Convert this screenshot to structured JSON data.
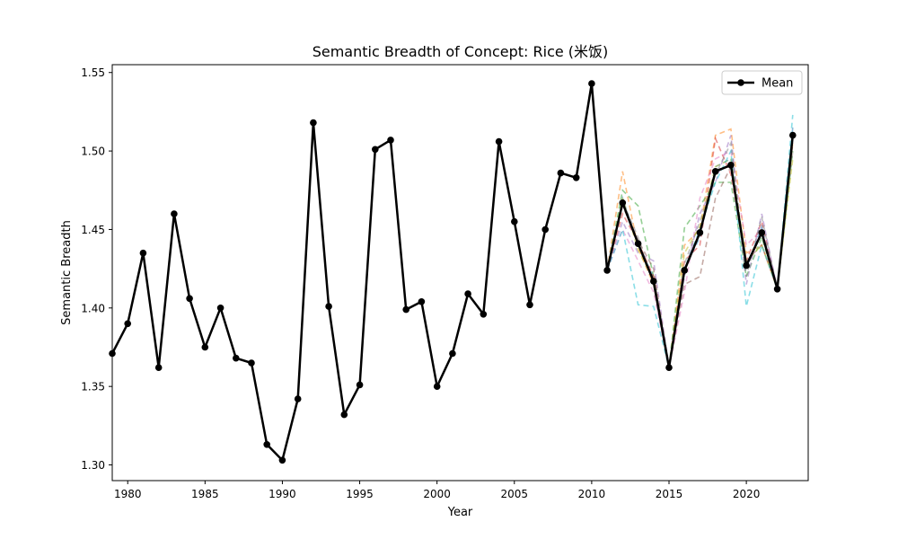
{
  "chart_data": {
    "type": "line",
    "title": "Semantic Breadth of Concept: Rice (米饭)",
    "xlabel": "Year",
    "ylabel": "Semantic Breadth",
    "xlim": [
      1979,
      2024
    ],
    "ylim": [
      1.29,
      1.555
    ],
    "x_ticks": [
      1980,
      1985,
      1990,
      1995,
      2000,
      2005,
      2010,
      2015,
      2020
    ],
    "x_tick_labels": [
      "1980",
      "1985",
      "1990",
      "1995",
      "2000",
      "2005",
      "2010",
      "2015",
      "2020"
    ],
    "y_ticks": [
      1.3,
      1.35,
      1.4,
      1.45,
      1.5,
      1.55
    ],
    "y_tick_labels": [
      "1.30",
      "1.35",
      "1.40",
      "1.45",
      "1.50",
      "1.55"
    ],
    "grid": false,
    "legend": {
      "position": "top-right",
      "entries": [
        "Mean"
      ]
    },
    "series": [
      {
        "name": "Mean",
        "color": "#000000",
        "style": "solid",
        "markers": true,
        "x": [
          1979,
          1980,
          1981,
          1982,
          1983,
          1984,
          1985,
          1986,
          1987,
          1988,
          1989,
          1990,
          1991,
          1992,
          1993,
          1994,
          1995,
          1996,
          1997,
          1998,
          1999,
          2000,
          2001,
          2002,
          2003,
          2004,
          2005,
          2006,
          2007,
          2008,
          2009,
          2010,
          2011,
          2012,
          2013,
          2014,
          2015,
          2016,
          2017,
          2018,
          2019,
          2020,
          2021,
          2022,
          2023
        ],
        "values": [
          1.371,
          1.39,
          1.435,
          1.362,
          1.46,
          1.406,
          1.375,
          1.4,
          1.368,
          1.365,
          1.313,
          1.303,
          1.342,
          1.518,
          1.401,
          1.332,
          1.351,
          1.501,
          1.507,
          1.399,
          1.404,
          1.35,
          1.371,
          1.409,
          1.396,
          1.506,
          1.455,
          1.402,
          1.45,
          1.486,
          1.483,
          1.543,
          1.424,
          1.467,
          1.441,
          1.417,
          1.362,
          1.424,
          1.448,
          1.487,
          1.491,
          1.427,
          1.448,
          1.412,
          1.51
        ]
      }
    ],
    "background_series": {
      "style": "dashed",
      "x": [
        2011,
        2012,
        2013,
        2014,
        2015,
        2016,
        2017,
        2018,
        2019,
        2020,
        2021,
        2022,
        2023
      ],
      "lines": [
        {
          "color": "#1f77b4",
          "values": [
            1.424,
            1.47,
            1.44,
            1.42,
            1.362,
            1.425,
            1.445,
            1.49,
            1.495,
            1.425,
            1.452,
            1.412,
            1.515
          ]
        },
        {
          "color": "#ff7f0e",
          "values": [
            1.424,
            1.487,
            1.438,
            1.415,
            1.362,
            1.44,
            1.45,
            1.51,
            1.514,
            1.435,
            1.44,
            1.412,
            1.505
          ]
        },
        {
          "color": "#2ca02c",
          "values": [
            1.424,
            1.475,
            1.465,
            1.42,
            1.362,
            1.451,
            1.465,
            1.48,
            1.48,
            1.42,
            1.445,
            1.412,
            1.5
          ]
        },
        {
          "color": "#d62728",
          "values": [
            1.424,
            1.46,
            1.442,
            1.42,
            1.362,
            1.43,
            1.44,
            1.508,
            1.485,
            1.43,
            1.455,
            1.412,
            1.512
          ]
        },
        {
          "color": "#9467bd",
          "values": [
            1.424,
            1.455,
            1.435,
            1.43,
            1.362,
            1.42,
            1.46,
            1.48,
            1.51,
            1.415,
            1.46,
            1.412,
            1.508
          ]
        },
        {
          "color": "#8c564b",
          "values": [
            1.424,
            1.465,
            1.443,
            1.425,
            1.362,
            1.415,
            1.42,
            1.47,
            1.49,
            1.43,
            1.44,
            1.412,
            1.505
          ]
        },
        {
          "color": "#e377c2",
          "values": [
            1.424,
            1.45,
            1.43,
            1.41,
            1.362,
            1.41,
            1.47,
            1.495,
            1.5,
            1.44,
            1.45,
            1.412,
            1.51
          ]
        },
        {
          "color": "#7f7f7f",
          "values": [
            1.424,
            1.468,
            1.445,
            1.415,
            1.362,
            1.428,
            1.455,
            1.485,
            1.505,
            1.42,
            1.458,
            1.412,
            1.5
          ]
        },
        {
          "color": "#bcbd22",
          "values": [
            1.424,
            1.47,
            1.437,
            1.418,
            1.362,
            1.435,
            1.452,
            1.49,
            1.495,
            1.43,
            1.44,
            1.412,
            1.495
          ]
        },
        {
          "color": "#17becf",
          "values": [
            1.424,
            1.45,
            1.402,
            1.401,
            1.362,
            1.425,
            1.45,
            1.48,
            1.5,
            1.401,
            1.44,
            1.412,
            1.523
          ]
        }
      ]
    }
  }
}
